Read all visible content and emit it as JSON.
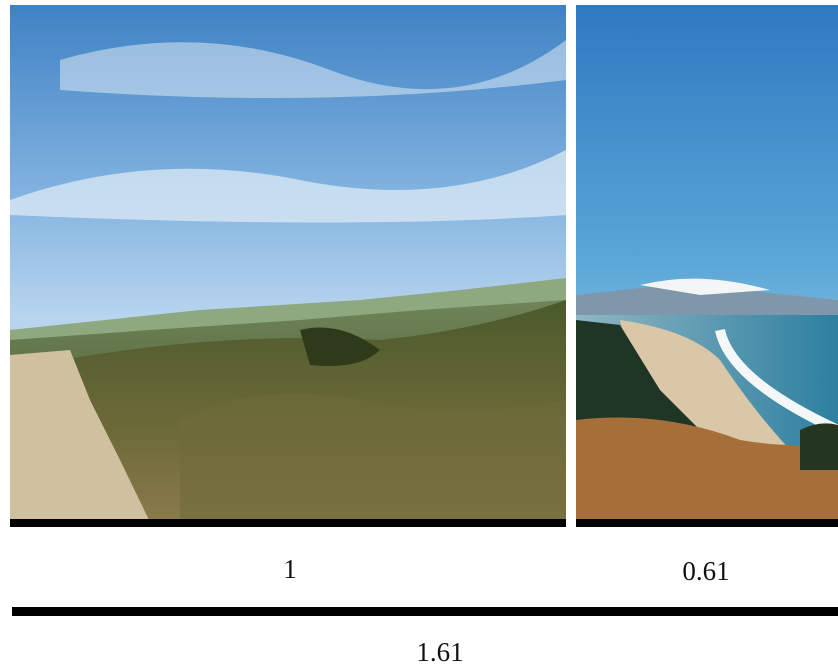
{
  "labels": {
    "left": "1",
    "right": "0.61",
    "total": "1.61"
  }
}
